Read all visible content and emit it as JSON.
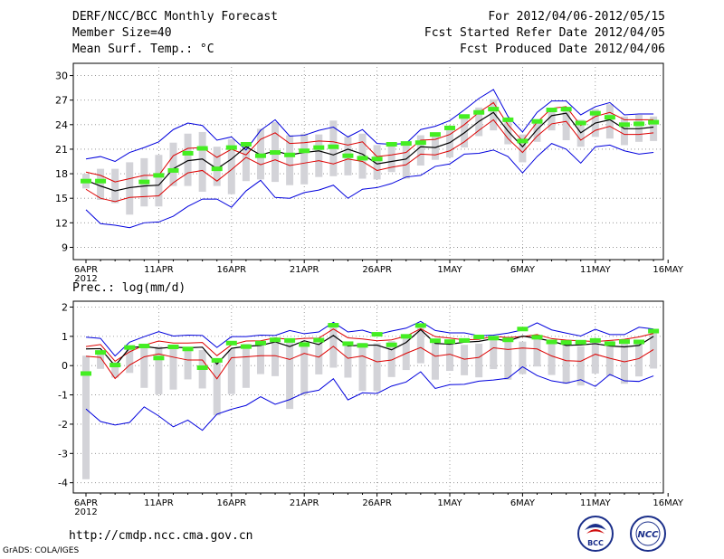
{
  "header": {
    "title": "DERF/NCC/BCC Monthly Forecast",
    "member": "Member Size=40",
    "variable": "Mean Surf. Temp.: °C",
    "period": "For 2012/04/06-2012/05/15",
    "refer": "Fcst Started Refer Date 2012/04/05",
    "produced": "Fcst Produced Date 2012/04/06"
  },
  "footer": {
    "url": "http://cmdp.ncc.cma.gov.cn",
    "grads": "GrADS: COLA/IGES",
    "logo_bcc": "BCC",
    "logo_ncc": "NCC"
  },
  "colors": {
    "envelope": "#0000dd",
    "spread": "#dd0000",
    "mean": "#000000",
    "bar": "#d3d3d8",
    "obs": "#44ee22"
  },
  "chart_data": [
    {
      "type": "line",
      "title": "Mean Surf. Temp.: °C",
      "xlabel": "",
      "ylabel": "",
      "year_label": "2012",
      "x_ticks": [
        "6APR",
        "11APR",
        "16APR",
        "21APR",
        "26APR",
        "1MAY",
        "6MAY",
        "11MAY",
        "16MAY"
      ],
      "ylim": [
        7.5,
        31.5
      ],
      "y_ticks": [
        9,
        12,
        15,
        18,
        21,
        24,
        27,
        30
      ],
      "grid": true,
      "series": [
        {
          "name": "max",
          "values": [
            19.8,
            20.1,
            19.5,
            20.6,
            21.2,
            21.9,
            23.4,
            24.2,
            23.9,
            22.1,
            22.5,
            20.9,
            23.3,
            24.6,
            22.6,
            22.7,
            23.3,
            23.7,
            22.5,
            23.4,
            21.7,
            21.6,
            21.7,
            23.4,
            23.8,
            24.5,
            25.8,
            27.2,
            28.3,
            25.0,
            23.1,
            25.5,
            26.9,
            26.9,
            25.2,
            26.2,
            26.7,
            25.2,
            25.3,
            25.3
          ]
        },
        {
          "name": "upper",
          "values": [
            18.2,
            17.8,
            17.0,
            17.4,
            17.8,
            17.8,
            20.2,
            21.1,
            21.2,
            20.0,
            21.0,
            20.3,
            22.2,
            23.0,
            21.7,
            21.8,
            22.0,
            21.9,
            21.5,
            21.9,
            20.1,
            20.3,
            20.6,
            22.1,
            22.2,
            22.8,
            24.0,
            25.5,
            26.7,
            24.0,
            22.0,
            24.3,
            26.0,
            26.2,
            23.9,
            25.0,
            25.5,
            24.6,
            24.6,
            24.6
          ]
        },
        {
          "name": "mean",
          "values": [
            17.2,
            16.5,
            15.9,
            16.3,
            16.5,
            16.6,
            18.6,
            19.6,
            19.8,
            18.6,
            19.8,
            21.3,
            20.3,
            20.8,
            20.3,
            20.6,
            20.8,
            20.3,
            21.0,
            20.4,
            19.2,
            19.5,
            19.8,
            21.3,
            21.2,
            21.8,
            23.0,
            24.4,
            25.5,
            23.2,
            21.3,
            23.4,
            25.1,
            25.4,
            23.0,
            24.2,
            24.6,
            23.5,
            23.5,
            23.7
          ]
        },
        {
          "name": "lower",
          "values": [
            16.1,
            15.0,
            14.6,
            15.1,
            15.2,
            15.3,
            16.9,
            18.1,
            18.4,
            17.1,
            18.5,
            20.0,
            19.1,
            19.7,
            19.0,
            19.3,
            19.6,
            19.2,
            19.8,
            19.5,
            18.4,
            18.8,
            19.1,
            20.4,
            20.3,
            20.8,
            21.9,
            23.3,
            24.6,
            22.3,
            20.6,
            22.6,
            24.1,
            24.4,
            22.1,
            23.3,
            23.8,
            22.8,
            22.8,
            23.0
          ]
        },
        {
          "name": "min",
          "values": [
            13.6,
            11.9,
            11.7,
            11.4,
            12.0,
            12.1,
            12.8,
            14.0,
            14.9,
            14.9,
            13.9,
            15.9,
            17.2,
            15.1,
            15.0,
            15.7,
            16.0,
            16.6,
            15.0,
            16.1,
            16.3,
            16.8,
            17.6,
            17.8,
            18.9,
            19.2,
            20.4,
            20.5,
            20.9,
            20.1,
            18.1,
            20.1,
            21.7,
            21.0,
            19.3,
            21.3,
            21.5,
            20.8,
            20.4,
            20.6
          ]
        },
        {
          "name": "bar_top",
          "values": [
            18.0,
            18.6,
            18.6,
            19.4,
            19.9,
            20.3,
            21.8,
            22.9,
            23.1,
            21.3,
            22.2,
            21.4,
            23.5,
            24.3,
            22.7,
            22.9,
            22.8,
            24.5,
            22.5,
            22.9,
            21.5,
            21.7,
            21.8,
            22.7,
            22.8,
            23.8,
            24.8,
            26.1,
            27.1,
            24.5,
            22.8,
            24.2,
            25.9,
            25.9,
            24.6,
            25.9,
            26.5,
            25.0,
            25.2,
            25.0
          ]
        },
        {
          "name": "bar_bottom",
          "values": [
            16.2,
            14.8,
            14.4,
            13.0,
            14.0,
            14.0,
            16.5,
            16.5,
            15.8,
            16.5,
            15.5,
            17.1,
            17.3,
            17.0,
            16.6,
            16.7,
            17.6,
            17.7,
            17.8,
            17.4,
            17.3,
            18.2,
            17.4,
            19.0,
            19.7,
            20.0,
            21.2,
            22.6,
            23.3,
            21.6,
            19.4,
            21.9,
            23.3,
            22.1,
            21.3,
            22.5,
            22.3,
            21.5,
            21.9,
            22.0
          ]
        },
        {
          "name": "observed",
          "values": [
            17.1,
            17.1,
            null,
            null,
            17.0,
            17.8,
            18.4,
            20.5,
            21.1,
            18.6,
            21.2,
            21.6,
            20.2,
            20.6,
            20.3,
            20.8,
            21.2,
            21.3,
            20.2,
            19.9,
            19.8,
            21.6,
            21.7,
            21.8,
            22.8,
            23.6,
            25.0,
            25.5,
            25.9,
            24.6,
            22.0,
            24.4,
            25.8,
            25.9,
            24.2,
            25.4,
            24.9,
            24.0,
            24.1,
            24.3
          ]
        }
      ]
    },
    {
      "type": "line",
      "title": "Prec.: log(mm/d)",
      "xlabel": "",
      "ylabel": "",
      "year_label": "2012",
      "x_ticks": [
        "6APR",
        "11APR",
        "16APR",
        "21APR",
        "26APR",
        "1MAY",
        "6MAY",
        "11MAY",
        "16MAY"
      ],
      "ylim": [
        -4.35,
        2.2
      ],
      "y_ticks": [
        -4,
        -3,
        -2,
        -1,
        0,
        1,
        2
      ],
      "grid": true,
      "series": [
        {
          "name": "max",
          "values": [
            0.97,
            0.93,
            0.33,
            0.8,
            0.99,
            1.16,
            1.01,
            1.04,
            1.03,
            0.62,
            0.99,
            0.99,
            1.04,
            1.03,
            1.2,
            1.09,
            1.15,
            1.48,
            1.15,
            1.21,
            1.06,
            1.18,
            1.28,
            1.51,
            1.2,
            1.12,
            1.12,
            1.02,
            1.04,
            1.11,
            1.22,
            1.46,
            1.22,
            1.11,
            1.01,
            1.24,
            1.06,
            1.06,
            1.31,
            1.25
          ]
        },
        {
          "name": "upper",
          "values": [
            0.65,
            0.72,
            0.15,
            0.47,
            0.7,
            0.84,
            0.77,
            0.77,
            0.79,
            0.34,
            0.71,
            0.84,
            0.85,
            0.95,
            0.89,
            0.93,
            0.94,
            1.25,
            0.95,
            0.91,
            0.85,
            0.88,
            1.01,
            1.26,
            0.99,
            0.94,
            0.88,
            0.9,
            1.0,
            0.96,
            0.99,
            1.06,
            0.92,
            0.87,
            0.85,
            0.82,
            0.86,
            0.9,
            0.98,
            1.1
          ]
        },
        {
          "name": "mean",
          "values": [
            0.57,
            0.58,
            -0.01,
            0.61,
            0.66,
            0.59,
            0.63,
            0.61,
            0.63,
            0.05,
            0.59,
            0.66,
            0.69,
            0.81,
            0.65,
            0.85,
            0.72,
            1.03,
            0.67,
            0.7,
            0.7,
            0.54,
            0.79,
            1.23,
            0.76,
            0.73,
            0.8,
            0.83,
            0.92,
            0.84,
            1.01,
            0.93,
            0.84,
            0.69,
            0.71,
            0.75,
            0.67,
            0.64,
            0.69,
            1.0
          ]
        },
        {
          "name": "lower",
          "values": [
            0.32,
            0.28,
            -0.44,
            0.02,
            0.3,
            0.4,
            0.29,
            0.19,
            0.19,
            -0.45,
            0.27,
            0.3,
            0.34,
            0.34,
            0.21,
            0.42,
            0.29,
            0.66,
            0.25,
            0.33,
            0.13,
            0.19,
            0.42,
            0.62,
            0.32,
            0.39,
            0.22,
            0.28,
            0.61,
            0.55,
            0.6,
            0.57,
            0.33,
            0.17,
            0.15,
            0.39,
            0.25,
            0.13,
            0.24,
            0.55
          ]
        },
        {
          "name": "min",
          "values": [
            -1.48,
            -1.91,
            -2.03,
            -1.94,
            -1.41,
            -1.72,
            -2.09,
            -1.86,
            -2.21,
            -1.66,
            -1.49,
            -1.36,
            -1.06,
            -1.32,
            -1.16,
            -0.93,
            -0.84,
            -0.45,
            -1.17,
            -0.93,
            -0.95,
            -0.7,
            -0.56,
            -0.21,
            -0.78,
            -0.65,
            -0.64,
            -0.53,
            -0.49,
            -0.43,
            -0.04,
            -0.34,
            -0.52,
            -0.6,
            -0.48,
            -0.71,
            -0.3,
            -0.52,
            -0.54,
            -0.35
          ]
        },
        {
          "name": "bar_top",
          "values": [
            0.34,
            0.38,
            0.12,
            0.61,
            0.66,
            0.65,
            0.57,
            0.63,
            0.53,
            0.13,
            0.56,
            0.74,
            0.77,
            0.92,
            0.85,
            0.8,
            0.77,
            1.34,
            0.76,
            0.78,
            0.77,
            0.84,
            0.96,
            1.36,
            0.79,
            0.83,
            0.71,
            0.75,
            0.88,
            0.88,
            0.82,
            1.03,
            0.81,
            0.77,
            0.66,
            0.91,
            0.87,
            0.86,
            0.85,
            1.21
          ]
        },
        {
          "name": "bar_bottom",
          "values": [
            -3.88,
            -0.11,
            -0.41,
            -0.25,
            -0.76,
            -0.98,
            -0.82,
            -0.47,
            -0.78,
            -1.7,
            -0.97,
            -0.76,
            -0.29,
            -0.36,
            -1.48,
            -1.0,
            -0.3,
            -0.07,
            -0.41,
            -0.86,
            -0.87,
            -0.39,
            -0.15,
            0.08,
            -0.48,
            -0.18,
            -0.33,
            -0.4,
            -0.12,
            -0.48,
            -0.29,
            -0.03,
            -0.32,
            -0.62,
            -0.68,
            -0.27,
            -0.36,
            -0.62,
            -0.37,
            -0.1
          ]
        },
        {
          "name": "observed",
          "values": [
            -0.27,
            0.45,
            0.02,
            0.62,
            0.67,
            0.26,
            0.64,
            0.57,
            -0.07,
            0.18,
            0.77,
            0.65,
            0.77,
            0.88,
            0.86,
            0.72,
            0.87,
            1.38,
            0.75,
            0.69,
            1.07,
            0.71,
            1.0,
            1.37,
            0.85,
            0.82,
            0.86,
            0.98,
            0.94,
            0.88,
            1.25,
            0.97,
            0.81,
            0.79,
            0.8,
            0.86,
            0.75,
            0.82,
            0.81,
            1.18
          ]
        }
      ]
    }
  ]
}
